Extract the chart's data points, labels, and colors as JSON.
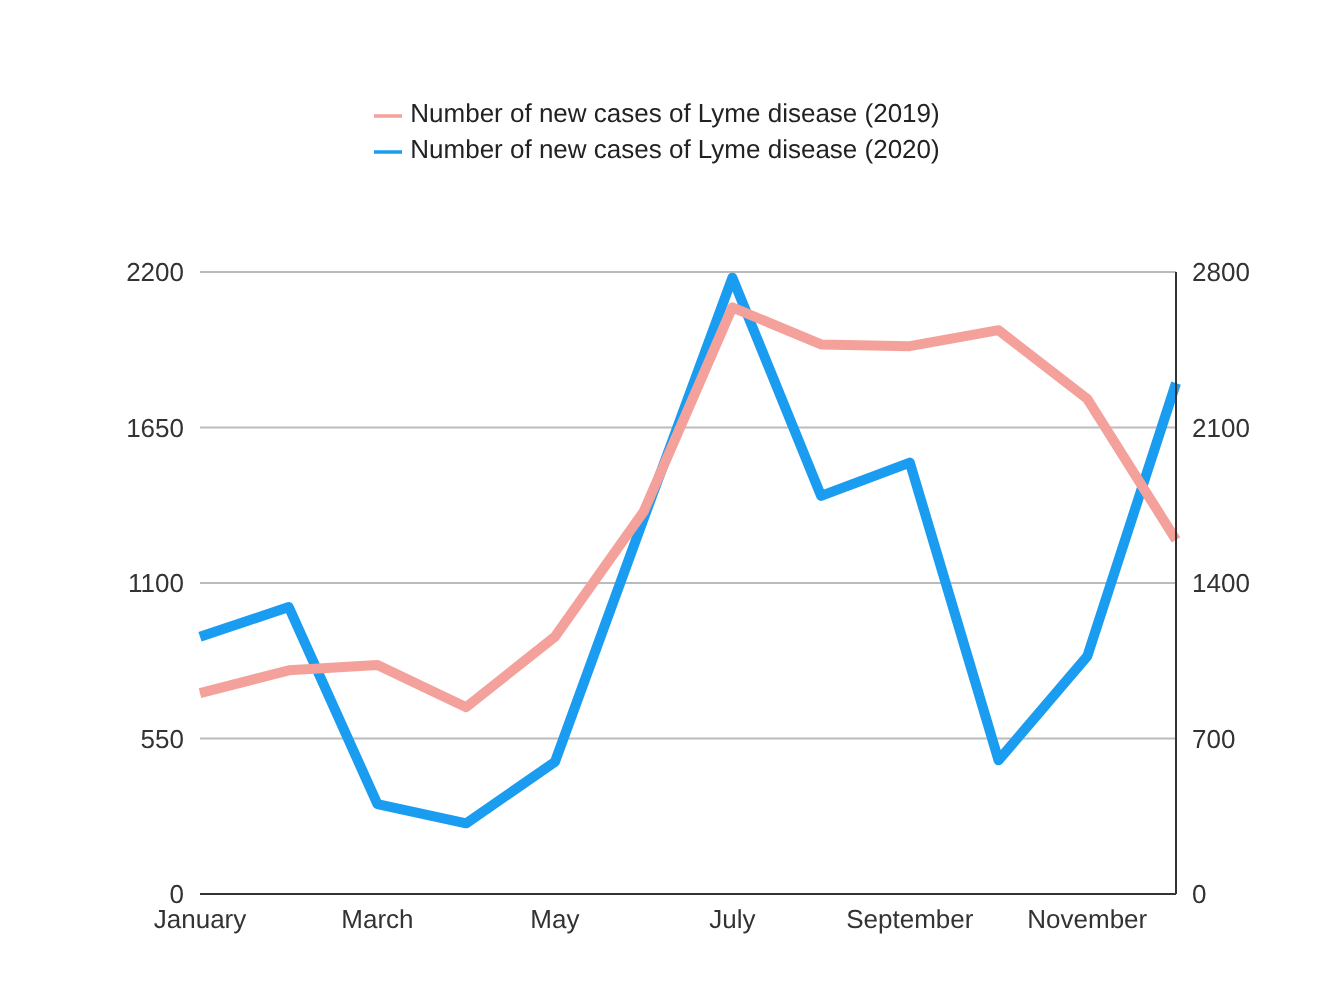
{
  "chart_data": {
    "type": "line",
    "categories": [
      "January",
      null,
      "March",
      null,
      "May",
      null,
      "July",
      null,
      "September",
      null,
      "November",
      null
    ],
    "series": [
      {
        "name": "Number of new cases of Lyme disease (2020)",
        "color": "#1a9cf0",
        "values": [
          910,
          1015,
          318,
          250,
          467,
          1327,
          2180,
          1408,
          1526,
          473,
          841,
          1807
        ]
      },
      {
        "name": "Number of new cases of Lyme disease (2019)",
        "color": "#f4a19b",
        "axis": "y2",
        "values": [
          904,
          1007,
          1031,
          841,
          1158,
          1721,
          2641,
          2474,
          2466,
          2538,
          2229,
          1594
        ]
      }
    ],
    "ylim": [
      0,
      2200
    ],
    "yticks": [
      0,
      550,
      1100,
      1650,
      2200
    ],
    "y2lim": [
      0,
      2800
    ],
    "y2ticks": [
      0,
      700,
      1400,
      2100,
      2800
    ],
    "grid": "y",
    "legend": "top",
    "marker": "none",
    "line_style": "solid"
  }
}
